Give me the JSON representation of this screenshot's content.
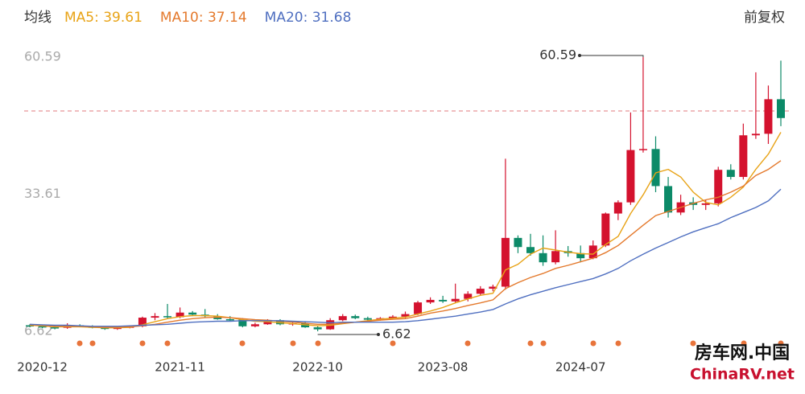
{
  "chart_data": {
    "type": "candlestick",
    "header": "均线",
    "adjust_label": "前复权",
    "categories": [
      null,
      "2020-12",
      null,
      null,
      null,
      null,
      null,
      null,
      null,
      null,
      null,
      null,
      "2021-11",
      null,
      null,
      null,
      null,
      null,
      null,
      null,
      null,
      null,
      null,
      "2022-10",
      null,
      null,
      null,
      null,
      null,
      null,
      null,
      null,
      null,
      "2023-08",
      null,
      null,
      null,
      null,
      null,
      null,
      null,
      null,
      null,
      null,
      "2024-07",
      null,
      null,
      null,
      null,
      null,
      null,
      null,
      null,
      null,
      null,
      null,
      null,
      null,
      null,
      null,
      null
    ],
    "open": [
      7.8,
      7.6,
      7.4,
      7.3,
      7.8,
      7.6,
      7.3,
      7.1,
      7.3,
      7.6,
      9.3,
      9.6,
      9.4,
      10.3,
      9.9,
      9.6,
      9.0,
      8.9,
      7.6,
      8.0,
      8.8,
      8.0,
      8.2,
      7.4,
      7.0,
      8.8,
      9.6,
      9.2,
      8.9,
      9.2,
      9.5,
      10.0,
      12.3,
      12.8,
      12.5,
      13.0,
      14.0,
      15.0,
      15.4,
      25.0,
      23.2,
      22.0,
      20.2,
      22.4,
      22.0,
      21.0,
      23.5,
      29.8,
      32.0,
      42.3,
      42.5,
      35.2,
      30.0,
      32.0,
      31.5,
      31.8,
      38.4,
      37.0,
      45.2,
      45.5,
      52.3
    ],
    "high": [
      8.0,
      7.9,
      7.8,
      8.2,
      8.0,
      7.8,
      7.6,
      7.5,
      7.8,
      9.5,
      10.2,
      12.0,
      11.3,
      10.6,
      11.0,
      10.0,
      9.6,
      9.2,
      8.3,
      9.0,
      9.0,
      8.6,
      8.5,
      7.8,
      9.2,
      10.0,
      9.9,
      9.5,
      9.4,
      9.8,
      10.5,
      12.6,
      13.3,
      13.6,
      16.0,
      14.5,
      15.5,
      15.8,
      40.6,
      25.5,
      25.8,
      25.5,
      26.5,
      23.4,
      23.5,
      24.5,
      30.0,
      32.4,
      49.7,
      60.59,
      45.0,
      37.0,
      33.5,
      33.0,
      32.5,
      39.0,
      39.5,
      47.5,
      57.6,
      55.0,
      59.9
    ],
    "low": [
      7.4,
      7.2,
      7.0,
      7.1,
      7.4,
      7.2,
      6.9,
      6.9,
      7.2,
      7.4,
      8.8,
      9.0,
      9.2,
      9.6,
      9.3,
      8.9,
      8.6,
      7.4,
      7.4,
      7.9,
      7.8,
      7.7,
      7.3,
      6.62,
      6.9,
      8.6,
      9.0,
      8.7,
      8.7,
      9.0,
      9.2,
      9.8,
      12.0,
      12.2,
      12.2,
      12.5,
      13.6,
      14.5,
      14.8,
      22.0,
      21.5,
      19.5,
      19.8,
      21.3,
      20.2,
      20.8,
      23.2,
      28.5,
      31.5,
      41.8,
      34.0,
      29.0,
      29.5,
      30.5,
      30.5,
      31.2,
      36.5,
      36.5,
      44.5,
      43.5,
      47.0
    ],
    "close": [
      7.6,
      7.4,
      7.3,
      7.8,
      7.6,
      7.3,
      7.1,
      7.3,
      7.6,
      9.3,
      9.6,
      9.4,
      10.3,
      9.9,
      9.6,
      9.0,
      8.9,
      7.6,
      8.0,
      8.8,
      8.0,
      8.2,
      7.4,
      7.0,
      8.8,
      9.6,
      9.2,
      8.9,
      9.2,
      9.5,
      10.0,
      12.3,
      12.8,
      12.5,
      13.0,
      14.0,
      15.0,
      15.4,
      25.0,
      23.2,
      22.0,
      20.2,
      22.4,
      22.0,
      21.0,
      23.5,
      29.8,
      32.0,
      42.3,
      42.5,
      35.2,
      30.0,
      32.0,
      31.5,
      31.8,
      38.4,
      37.0,
      45.2,
      45.5,
      52.3,
      48.6
    ],
    "up_color": "#d4122e",
    "down_color": "#0c8a68",
    "ylim": [
      4.56,
      63.92
    ],
    "yticks": [
      6.62,
      33.61,
      60.59
    ],
    "grid": false,
    "price_line": 50.0,
    "high_label": 60.59,
    "low_label": 6.62,
    "series": [
      {
        "name": "MA5: 39.61",
        "color": "#e8a317",
        "values": [
          7.8,
          7.7,
          7.5,
          7.5,
          7.5,
          7.4,
          7.3,
          7.3,
          7.4,
          7.9,
          8.5,
          9.1,
          9.5,
          9.7,
          9.7,
          9.6,
          9.3,
          8.9,
          8.6,
          8.5,
          8.3,
          8.1,
          7.9,
          7.7,
          7.8,
          8.1,
          8.4,
          8.7,
          9.0,
          9.2,
          9.4,
          10.0,
          10.6,
          11.3,
          12.2,
          13.0,
          13.7,
          14.1,
          18.7,
          19.8,
          21.8,
          23.0,
          22.6,
          22.2,
          21.9,
          21.8,
          23.7,
          25.3,
          29.8,
          33.5,
          37.8,
          38.5,
          37.0,
          34.0,
          32.0,
          31.5,
          33.0,
          35.0,
          38.5,
          41.5,
          45.8
        ]
      },
      {
        "name": "MA10: 37.14",
        "color": "#e4792c",
        "values": [
          7.9,
          7.8,
          7.6,
          7.6,
          7.6,
          7.5,
          7.4,
          7.4,
          7.5,
          7.7,
          8.0,
          8.4,
          8.8,
          9.1,
          9.3,
          9.4,
          9.3,
          9.1,
          8.9,
          8.8,
          8.6,
          8.4,
          8.2,
          8.0,
          8.0,
          8.2,
          8.4,
          8.6,
          8.8,
          9.0,
          9.1,
          9.6,
          10.2,
          10.6,
          11.1,
          11.7,
          12.2,
          12.8,
          15.0,
          16.2,
          17.2,
          18.0,
          19.0,
          19.6,
          20.3,
          21.0,
          22.1,
          23.5,
          25.5,
          27.5,
          29.4,
          30.2,
          31.0,
          31.8,
          32.5,
          33.0,
          34.0,
          35.2,
          37.3,
          38.5,
          40.2
        ]
      },
      {
        "name": "MA20: 31.68",
        "color": "#4f6fc0",
        "values": [
          8.0,
          7.9,
          7.8,
          7.8,
          7.7,
          7.6,
          7.6,
          7.6,
          7.7,
          7.8,
          7.9,
          8.0,
          8.2,
          8.4,
          8.5,
          8.6,
          8.6,
          8.7,
          8.7,
          8.7,
          8.7,
          8.6,
          8.5,
          8.4,
          8.3,
          8.4,
          8.4,
          8.4,
          8.4,
          8.4,
          8.5,
          8.7,
          9.0,
          9.3,
          9.6,
          10.0,
          10.4,
          10.9,
          12.0,
          13.0,
          13.8,
          14.5,
          15.2,
          15.8,
          16.4,
          17.0,
          17.9,
          19.0,
          20.5,
          21.8,
          23.0,
          24.1,
          25.2,
          26.2,
          27.0,
          27.8,
          29.0,
          30.0,
          31.0,
          32.3,
          34.6
        ]
      }
    ]
  },
  "watermark": {
    "title": "房车网.中国",
    "url": "ChinaRV.net"
  }
}
